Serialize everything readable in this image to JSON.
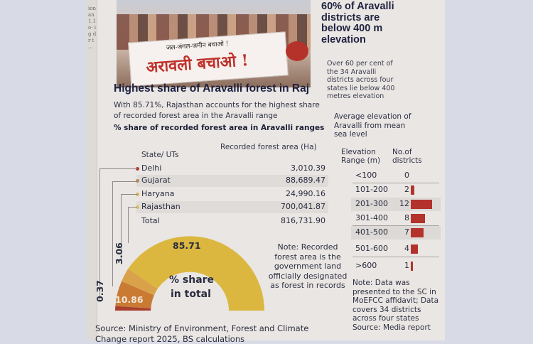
{
  "photo": {
    "banner_small_text": "जल-जंगल-जमीन बचाओ !",
    "banner_big_text": "अरावली बचाओ !"
  },
  "side": {
    "headline": "60% of Aravalli districts are below 400 m elevation",
    "subtext": "Over 60 per cent of the 34 Aravalli districts across four states lie below 400 metres elevation",
    "elevation_heading": "Average elevation of Aravalli from mean sea level"
  },
  "main": {
    "title": "Highest share of Aravalli forest in Raj",
    "sub_line_1": "With 85.71%, Rajasthan accounts for the highest share",
    "sub_line_2": "of recorded forest area in the Aravalli range",
    "chart_title": "% share of recorded forest area in Aravalli ranges"
  },
  "table": {
    "col_state": "State/ UTs",
    "col_area": "Recorded forest area (Ha)",
    "rows": [
      {
        "name": "Delhi",
        "value": "3,010.39",
        "color": "#b43a2f"
      },
      {
        "name": "Gujarat",
        "value": "88,689.47",
        "color": "#b58a55"
      },
      {
        "name": "Haryana",
        "value": "24,990.16",
        "color": "#d8b255"
      },
      {
        "name": "Rajasthan",
        "value": "700,041.87",
        "color": "#e0c060"
      },
      {
        "name": "Total",
        "value": "816,731.90",
        "color": ""
      }
    ]
  },
  "gauge": {
    "label_rajasthan": "85.71",
    "label_gujarat": "10.86",
    "label_haryana": "3.06",
    "label_delhi": "0.37",
    "center_line_1": "% share",
    "center_line_2": "in total",
    "colors": {
      "rajasthan": "#dcb73f",
      "gujarat": "#c97a33",
      "haryana": "#d9a24a",
      "delhi": "#a8402d"
    }
  },
  "note": "Note: Recorded forest area is the government land officially designated as forest in records",
  "source": {
    "line_1": "Source: Ministry of Environment, Forest and Climate",
    "line_2": "Change report 2025, BS calculations"
  },
  "elevation_table": {
    "col_range": "Elevation Range (m)",
    "col_districts": "No.of districts",
    "rows": [
      {
        "range": "<100",
        "count": "0",
        "n": 0
      },
      {
        "range": "101-200",
        "count": "2",
        "n": 2
      },
      {
        "range": "201-300",
        "count": "12",
        "n": 12
      },
      {
        "range": "301-400",
        "count": "8",
        "n": 8
      },
      {
        "range": "401-500",
        "count": "7",
        "n": 7
      },
      {
        "range": "501-600",
        "count": "4",
        "n": 4
      },
      {
        "range": ">600",
        "count": "1",
        "n": 1
      }
    ],
    "bar_color": "#b3322b",
    "note": "Note: Data was presented to the SC in MoEFCC affidavit; Data covers 34 districts across four states",
    "source": "Source: Media report"
  }
}
